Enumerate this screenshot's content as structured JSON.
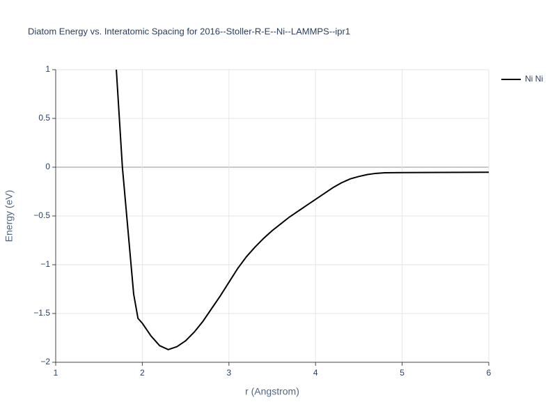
{
  "chart_data": {
    "type": "line",
    "title": "Diatom Energy vs. Interatomic Spacing for 2016--Stoller-R-E--Ni--LAMMPS--ipr1",
    "x_label": "r (Angstrom)",
    "y_label": "Energy (eV)",
    "x": [
      1.7,
      1.77,
      1.8,
      1.85,
      1.9,
      1.95,
      2.0,
      2.1,
      2.2,
      2.3,
      2.4,
      2.5,
      2.6,
      2.7,
      2.8,
      2.9,
      3.0,
      3.1,
      3.2,
      3.3,
      3.4,
      3.5,
      3.6,
      3.7,
      3.8,
      3.9,
      4.0,
      4.1,
      4.2,
      4.3,
      4.4,
      4.5,
      4.6,
      4.7,
      4.8,
      5.0,
      6.0
    ],
    "series": [
      {
        "name": "Ni Ni",
        "color": "#000000",
        "values": [
          1.0,
          0,
          -0.3,
          -0.8,
          -1.3,
          -1.55,
          -1.6,
          -1.73,
          -1.83,
          -1.87,
          -1.84,
          -1.78,
          -1.69,
          -1.58,
          -1.45,
          -1.32,
          -1.18,
          -1.04,
          -0.92,
          -0.82,
          -0.73,
          -0.65,
          -0.58,
          -0.51,
          -0.45,
          -0.39,
          -0.33,
          -0.27,
          -0.21,
          -0.16,
          -0.12,
          -0.095,
          -0.075,
          -0.063,
          -0.057,
          -0.055,
          -0.052
        ]
      }
    ],
    "xlim": [
      1,
      6
    ],
    "ylim": [
      -2,
      1
    ],
    "xticks": [
      1,
      2,
      3,
      4,
      5,
      6
    ],
    "yticks": [
      {
        "value": -2,
        "label": "−2"
      },
      {
        "value": -1.5,
        "label": "−1.5"
      },
      {
        "value": -1,
        "label": "−1"
      },
      {
        "value": -0.5,
        "label": "−0.5"
      },
      0,
      0.5,
      1
    ],
    "grid": true,
    "legend": "top-right"
  }
}
